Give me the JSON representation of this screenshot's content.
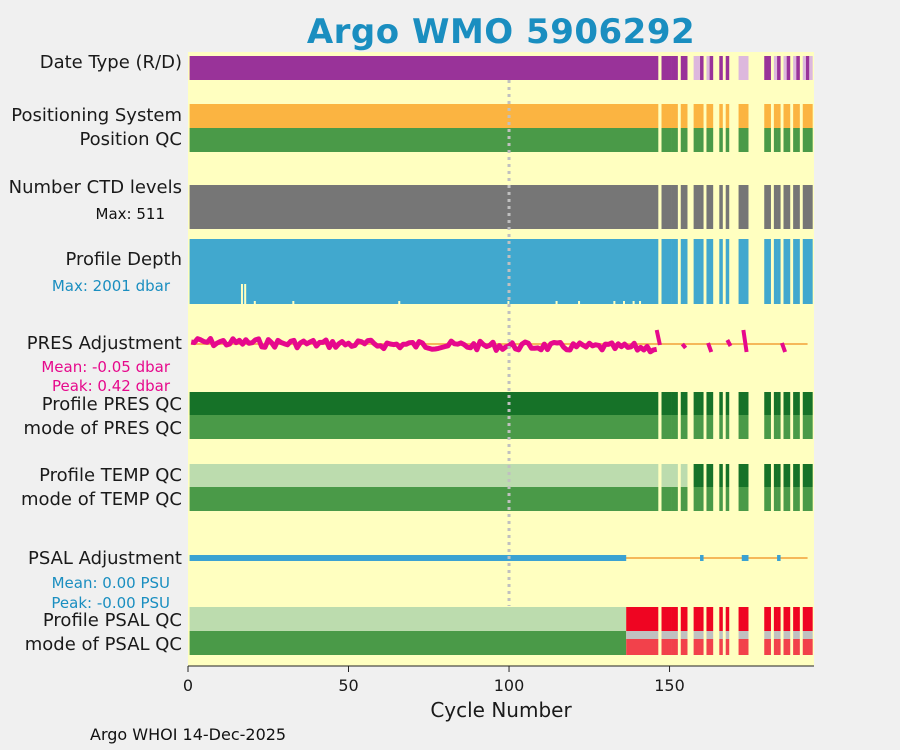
{
  "page_title": "Argo WMO 5906292",
  "rows": {
    "date_type": "Date Type (R/D)",
    "positioning_system": "Positioning System",
    "position_qc": "Position QC",
    "number_ctd_levels": "Number CTD levels",
    "ctd_max": "Max: 511",
    "profile_depth": "Profile Depth",
    "depth_max": "Max: 2001 dbar",
    "pres_adjustment": "PRES Adjustment",
    "pres_mean": "Mean: -0.05 dbar",
    "pres_peak": "Peak: 0.42 dbar",
    "profile_pres_qc": "Profile PRES QC",
    "mode_pres_qc": "mode of PRES QC",
    "profile_temp_qc": "Profile TEMP QC",
    "mode_temp_qc": "mode of TEMP QC",
    "psal_adjustment": "PSAL Adjustment",
    "psal_mean": "Mean: 0.00 PSU",
    "psal_peak": "Peak: -0.00 PSU",
    "profile_psal_qc": "Profile PSAL QC",
    "mode_psal_qc": "mode of PSAL QC"
  },
  "footer": "Argo WHOI 14-Dec-2025",
  "colors": {
    "background": "#ffffc0",
    "title": "#1a8ec0",
    "date_type": "#993399",
    "date_type_light": "#ddb8dd",
    "positioning": "#fbb441",
    "qc_green": "#4a9a48",
    "qc_dark_green": "#167228",
    "qc_light_green": "#bcdcae",
    "ctd_gray": "#767676",
    "depth_blue": "#41a8ce",
    "pres_magenta": "#e6098c",
    "orange_line": "#f5b85a",
    "psal_blue": "#3ba2d2",
    "qc_red": "#ef0522",
    "qc_red_light": "#f2414b",
    "qc_gray": "#c0c0c0",
    "median_line": "#c0c0c0"
  },
  "chart_data": {
    "type": "timeline",
    "title": "Argo WMO 5906292",
    "xlabel": "Cycle Number",
    "xlim": [
      0,
      195
    ],
    "xticks": [
      0,
      50,
      100,
      150
    ],
    "xtick_labels": [
      "0",
      "50",
      "100",
      "150"
    ],
    "median_marker_cycle": 100,
    "cycle_ranges": {
      "continuous": [
        1,
        146
      ],
      "late_cycles": [
        148,
        149,
        150,
        151,
        152,
        154,
        155,
        158,
        159,
        160,
        162,
        163,
        166,
        168,
        172,
        173,
        174,
        180,
        181,
        183,
        184,
        186,
        187,
        189,
        190,
        192,
        193,
        194
      ]
    },
    "date_type": {
      "delayed_until": 145,
      "realtime_cycles": [
        158,
        159,
        162,
        165,
        172,
        173,
        174,
        183,
        186,
        189,
        192,
        194
      ]
    },
    "number_ctd_levels_max": 511,
    "profile_depth_max_dbar": 2001,
    "profile_depth_shallow_cycles": [
      17,
      18,
      21,
      33,
      66,
      100,
      115,
      122,
      133,
      136,
      139,
      141
    ],
    "pres_adjustment": {
      "mean_dbar": -0.05,
      "peak_dbar": 0.42,
      "adjusted_until": 146
    },
    "temp_qc": {
      "light_until": 155
    },
    "psal_adjustment": {
      "mean_psu": 0.0,
      "peak_psu": -0.0,
      "adjusted_until": 136
    },
    "psal_qc": {
      "good_until": 136,
      "bad_from": 137
    }
  }
}
